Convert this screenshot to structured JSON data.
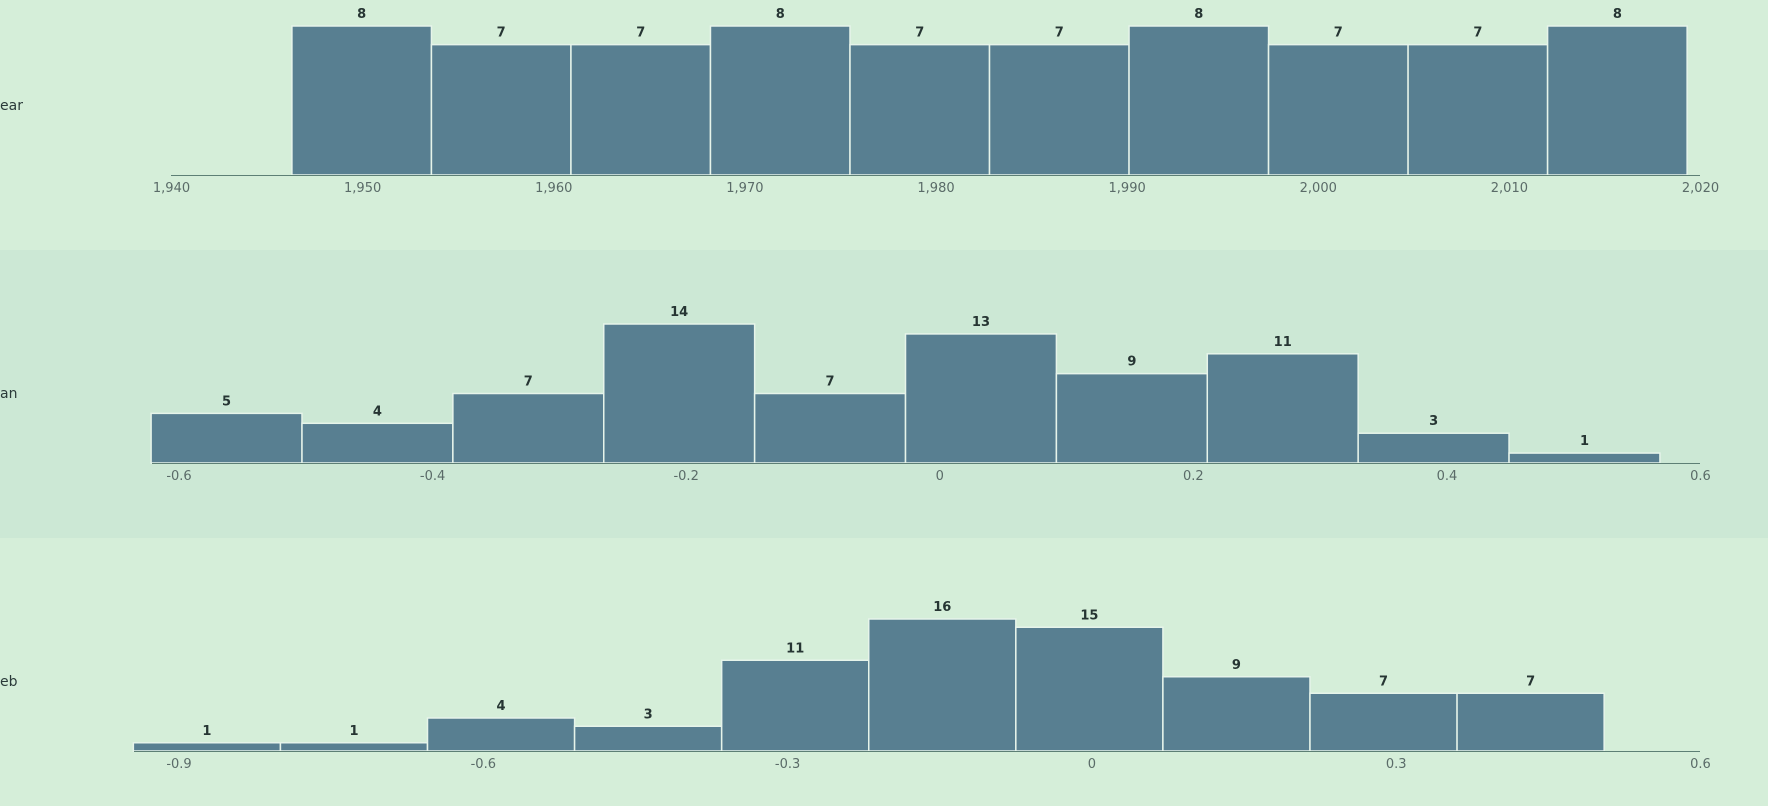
{
  "chart_data": [
    {
      "type": "bar",
      "label": "ear",
      "xlim": [
        1940,
        2020
      ],
      "ticks": [
        "1,940",
        "1,950",
        "1,960",
        "1,970",
        "1,980",
        "1,990",
        "2,000",
        "2,010",
        "2,020"
      ],
      "tick_values": [
        1940,
        1950,
        1960,
        1970,
        1980,
        1990,
        2000,
        2010,
        2020
      ],
      "bins": [
        {
          "x0": 1946.3,
          "x1": 1953.6,
          "value": 8
        },
        {
          "x0": 1953.6,
          "x1": 1960.9,
          "value": 7
        },
        {
          "x0": 1960.9,
          "x1": 1968.2,
          "value": 7
        },
        {
          "x0": 1968.2,
          "x1": 1975.5,
          "value": 8
        },
        {
          "x0": 1975.5,
          "x1": 1982.8,
          "value": 7
        },
        {
          "x0": 1982.8,
          "x1": 1990.1,
          "value": 7
        },
        {
          "x0": 1990.1,
          "x1": 1997.4,
          "value": 8
        },
        {
          "x0": 1997.4,
          "x1": 2004.7,
          "value": 7
        },
        {
          "x0": 2004.7,
          "x1": 2012.0,
          "value": 7
        },
        {
          "x0": 2012.0,
          "x1": 2019.3,
          "value": 8
        }
      ],
      "ymax": 8
    },
    {
      "type": "bar",
      "label": "an",
      "xlim": [
        -0.61,
        0.6
      ],
      "ticks": [
        "-0.6",
        "-0.4",
        "-0.2",
        "0",
        "0.2",
        "0.4",
        "0.6"
      ],
      "tick_values": [
        -0.6,
        -0.4,
        -0.2,
        0,
        0.2,
        0.4,
        0.6
      ],
      "bins": [
        {
          "x0": -0.622,
          "x1": -0.503,
          "value": 5
        },
        {
          "x0": -0.503,
          "x1": -0.384,
          "value": 4
        },
        {
          "x0": -0.384,
          "x1": -0.265,
          "value": 7
        },
        {
          "x0": -0.265,
          "x1": -0.146,
          "value": 14
        },
        {
          "x0": -0.146,
          "x1": -0.027,
          "value": 7
        },
        {
          "x0": -0.027,
          "x1": 0.092,
          "value": 13
        },
        {
          "x0": 0.092,
          "x1": 0.211,
          "value": 9
        },
        {
          "x0": 0.211,
          "x1": 0.33,
          "value": 11
        },
        {
          "x0": 0.33,
          "x1": 0.449,
          "value": 3
        },
        {
          "x0": 0.449,
          "x1": 0.568,
          "value": 1
        }
      ],
      "ymax": 14
    },
    {
      "type": "bar",
      "label": "eb",
      "xlim": [
        -0.945,
        0.6
      ],
      "ticks": [
        "-0.9",
        "-0.6",
        "-0.3",
        "0",
        "0.3",
        "0.6"
      ],
      "tick_values": [
        -0.9,
        -0.6,
        -0.3,
        0,
        0.3,
        0.6
      ],
      "bins": [
        {
          "x0": -0.945,
          "x1": -0.8,
          "value": 1
        },
        {
          "x0": -0.8,
          "x1": -0.655,
          "value": 1
        },
        {
          "x0": -0.655,
          "x1": -0.51,
          "value": 4
        },
        {
          "x0": -0.51,
          "x1": -0.365,
          "value": 3
        },
        {
          "x0": -0.365,
          "x1": -0.22,
          "value": 11
        },
        {
          "x0": -0.22,
          "x1": -0.075,
          "value": 16
        },
        {
          "x0": -0.075,
          "x1": 0.07,
          "value": 15
        },
        {
          "x0": 0.07,
          "x1": 0.215,
          "value": 9
        },
        {
          "x0": 0.215,
          "x1": 0.36,
          "value": 7
        },
        {
          "x0": 0.36,
          "x1": 0.505,
          "value": 7
        }
      ],
      "ymax": 16
    }
  ],
  "colors": {
    "bar": "#587f91",
    "background": "#d5eed9",
    "band": "#cce8d5"
  }
}
